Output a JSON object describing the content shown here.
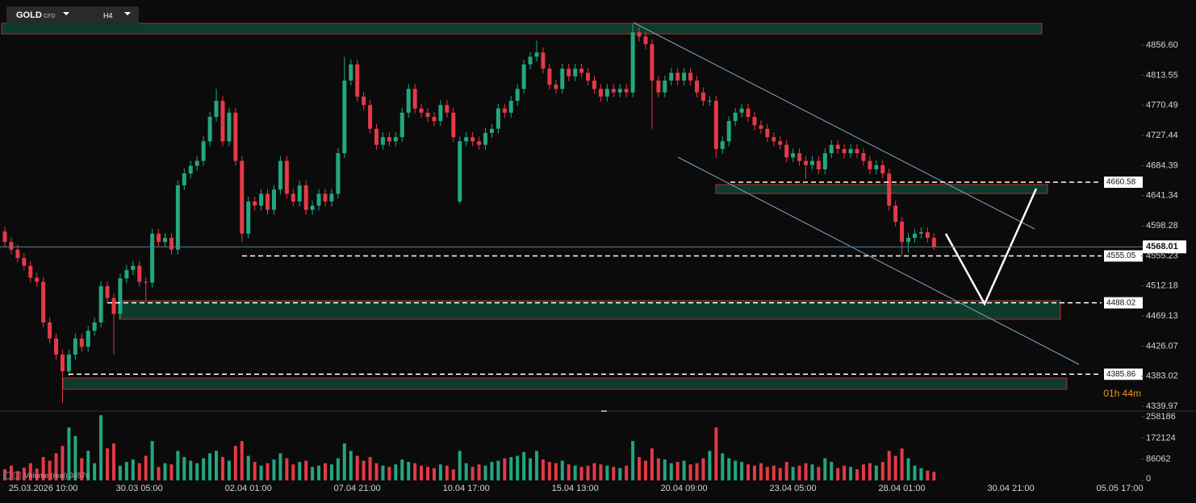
{
  "header": {
    "symbol": "GOLD",
    "badge": "CFD",
    "timeframe": "H4"
  },
  "chart_data": {
    "type": "candlestick",
    "categories": [
      null,
      null,
      null,
      null,
      null,
      null,
      "25.03.2026 10:00",
      null,
      null,
      null,
      null,
      null,
      null,
      null,
      null,
      null,
      null,
      null,
      null,
      null,
      null,
      "30.03 05:00",
      null,
      null,
      null,
      null,
      null,
      null,
      null,
      null,
      null,
      null,
      null,
      null,
      null,
      null,
      null,
      null,
      "02.04 01:00",
      null,
      null,
      null,
      null,
      null,
      null,
      null,
      null,
      null,
      null,
      null,
      null,
      null,
      null,
      null,
      null,
      "07.04 21:00",
      null,
      null,
      null,
      null,
      null,
      null,
      null,
      null,
      null,
      null,
      null,
      null,
      null,
      null,
      null,
      null,
      "10.04 17:00",
      null,
      null,
      null,
      null,
      null,
      null,
      null,
      null,
      null,
      null,
      null,
      null,
      null,
      null,
      null,
      null,
      "15.04 13:00",
      null,
      null,
      null,
      null,
      null,
      null,
      null,
      null,
      null,
      null,
      null,
      null,
      null,
      null,
      null,
      null,
      "20.04 09:00",
      null,
      null,
      null,
      null,
      null,
      null,
      null,
      null,
      null,
      null,
      null,
      null,
      null,
      null,
      null,
      null,
      "23.04 05:00",
      null,
      null,
      null,
      null,
      null,
      null,
      null,
      null,
      null,
      null,
      null,
      null,
      null,
      null,
      null,
      null,
      "28.04 01:00",
      null,
      null,
      null,
      null,
      null,
      null,
      null,
      null,
      null,
      null,
      null,
      null,
      null,
      null,
      null,
      null,
      "30.04 21:00",
      null,
      null,
      null,
      null,
      null,
      null,
      null,
      null,
      null,
      null,
      null,
      null,
      null,
      null,
      null,
      null,
      "05.05 17:00",
      null,
      null
    ],
    "open": [
      4590,
      4575,
      4564,
      4552,
      4541,
      4524,
      4518,
      4460,
      4437,
      4414,
      4390,
      4414,
      4437,
      4425,
      4448,
      4460,
      4512,
      4495,
      4472,
      4523,
      4535,
      4541,
      4518,
      4517,
      4587,
      4575,
      4581,
      4564,
      4656,
      4673,
      4684,
      4691,
      4719,
      4754,
      4777,
      4719,
      4760,
      4691,
      4587,
      4633,
      4627,
      4644,
      4621,
      4650,
      4691,
      4644,
      4633,
      4656,
      4621,
      4627,
      4644,
      4633,
      4644,
      4702,
      4806,
      4829,
      4783,
      4771,
      4737,
      4714,
      4725,
      4719,
      4725,
      4760,
      4794,
      4766,
      4760,
      4754,
      4748,
      4771,
      4760,
      4633,
      4719,
      4725,
      4719,
      4714,
      4731,
      4737,
      4766,
      4760,
      4777,
      4794,
      4829,
      4840,
      4846,
      4823,
      4800,
      4794,
      4823,
      4812,
      4823,
      4817,
      4806,
      4794,
      4783,
      4794,
      4789,
      4794,
      4789,
      4875,
      4869,
      4858,
      4806,
      4789,
      4806,
      4817,
      4806,
      4817,
      4806,
      4789,
      4777,
      4777,
      4708,
      4719,
      4748,
      4760,
      4766,
      4754,
      4742,
      4737,
      4725,
      4719,
      4714,
      4696,
      4702,
      4691,
      4685,
      4691,
      4679,
      4702,
      4714,
      4708,
      4702,
      4708,
      4702,
      4691,
      4679,
      4685,
      4673,
      4627,
      4604,
      4575,
      4581,
      4587,
      4589,
      4581,
      null,
      null,
      null,
      null,
      null,
      null,
      null,
      null,
      null,
      null,
      null,
      null,
      null,
      null,
      null,
      null,
      null,
      null,
      null,
      null,
      null,
      null,
      null,
      null,
      null,
      null,
      null,
      null,
      null,
      null,
      null
    ],
    "high": [
      4597,
      4582,
      4571,
      4559,
      4548,
      4531,
      4525,
      4467,
      4444,
      4421,
      4421,
      4444,
      4444,
      4455,
      4467,
      4519,
      4519,
      4502,
      4530,
      4542,
      4548,
      4548,
      4525,
      4594,
      4594,
      4588,
      4588,
      4663,
      4680,
      4691,
      4698,
      4726,
      4761,
      4794,
      4784,
      4767,
      4767,
      4698,
      4640,
      4640,
      4651,
      4651,
      4657,
      4698,
      4698,
      4651,
      4663,
      4663,
      4634,
      4651,
      4651,
      4651,
      4709,
      4840,
      4836,
      4836,
      4790,
      4778,
      4744,
      4732,
      4732,
      4732,
      4767,
      4801,
      4801,
      4773,
      4767,
      4761,
      4778,
      4778,
      4767,
      4726,
      4732,
      4732,
      4726,
      4738,
      4744,
      4773,
      4773,
      4784,
      4801,
      4836,
      4847,
      4863,
      4853,
      4830,
      4807,
      4830,
      4830,
      4830,
      4830,
      4824,
      4813,
      4801,
      4801,
      4801,
      4801,
      4801,
      4887,
      4882,
      4876,
      4865,
      4813,
      4813,
      4824,
      4824,
      4824,
      4824,
      4813,
      4796,
      4784,
      4784,
      4726,
      4755,
      4767,
      4773,
      4773,
      4761,
      4749,
      4744,
      4732,
      4726,
      4721,
      4709,
      4709,
      4698,
      4698,
      4698,
      4709,
      4721,
      4721,
      4715,
      4715,
      4715,
      4709,
      4698,
      4692,
      4692,
      4680,
      4634,
      4611,
      4588,
      4594,
      4596,
      4596,
      4588,
      null,
      null,
      null,
      null,
      null,
      null,
      null,
      null,
      null,
      null,
      null,
      null,
      null,
      null,
      null,
      null,
      null,
      null,
      null,
      null,
      null,
      null,
      null,
      null,
      null,
      null,
      null,
      null,
      null,
      null,
      null
    ],
    "low": [
      4568,
      4557,
      4545,
      4534,
      4517,
      4511,
      4453,
      4430,
      4407,
      4345,
      4383,
      4407,
      4418,
      4418,
      4441,
      4453,
      4488,
      4414,
      4465,
      4516,
      4528,
      4511,
      4490,
      4510,
      4568,
      4568,
      4557,
      4557,
      4649,
      4666,
      4677,
      4684,
      4712,
      4747,
      4712,
      4712,
      4684,
      4575,
      4580,
      4620,
      4620,
      4614,
      4614,
      4643,
      4637,
      4626,
      4626,
      4614,
      4614,
      4620,
      4626,
      4626,
      4637,
      4695,
      4799,
      4776,
      4764,
      4730,
      4707,
      4707,
      4712,
      4712,
      4718,
      4753,
      4759,
      4753,
      4747,
      4741,
      4741,
      4753,
      4718,
      4630,
      4712,
      4712,
      4707,
      4707,
      4724,
      4730,
      4753,
      4753,
      4770,
      4787,
      4822,
      4833,
      4816,
      4793,
      4787,
      4787,
      4805,
      4805,
      4810,
      4799,
      4787,
      4776,
      4776,
      4782,
      4782,
      4782,
      4782,
      4862,
      4851,
      4737,
      4782,
      4782,
      4799,
      4799,
      4799,
      4799,
      4782,
      4770,
      4770,
      4695,
      4701,
      4712,
      4741,
      4753,
      4747,
      4735,
      4730,
      4718,
      4712,
      4707,
      4689,
      4689,
      4684,
      4665,
      4678,
      4672,
      4672,
      4695,
      4701,
      4695,
      4695,
      4695,
      4684,
      4672,
      4672,
      4666,
      4620,
      4597,
      4555,
      4560,
      4574,
      4580,
      4574,
      4563,
      null,
      null,
      null,
      null,
      null,
      null,
      null,
      null,
      null,
      null,
      null,
      null,
      null,
      null,
      null,
      null,
      null,
      null,
      null,
      null,
      null,
      null,
      null,
      null,
      null,
      null,
      null,
      null,
      null,
      null,
      null
    ],
    "close": [
      4575,
      4564,
      4552,
      4541,
      4524,
      4518,
      4460,
      4437,
      4414,
      4390,
      4414,
      4437,
      4425,
      4448,
      4460,
      4512,
      4495,
      4472,
      4523,
      4535,
      4541,
      4518,
      4517,
      4587,
      4575,
      4581,
      4564,
      4656,
      4673,
      4684,
      4691,
      4719,
      4754,
      4777,
      4719,
      4760,
      4691,
      4587,
      4633,
      4627,
      4644,
      4621,
      4650,
      4691,
      4644,
      4633,
      4656,
      4621,
      4627,
      4644,
      4633,
      4644,
      4702,
      4806,
      4829,
      4783,
      4771,
      4737,
      4714,
      4725,
      4719,
      4725,
      4760,
      4794,
      4766,
      4760,
      4754,
      4748,
      4771,
      4760,
      4725,
      4719,
      4725,
      4719,
      4714,
      4731,
      4737,
      4766,
      4760,
      4777,
      4794,
      4829,
      4840,
      4846,
      4823,
      4800,
      4794,
      4823,
      4812,
      4823,
      4817,
      4806,
      4794,
      4783,
      4794,
      4789,
      4794,
      4789,
      4875,
      4869,
      4858,
      4806,
      4789,
      4806,
      4817,
      4806,
      4817,
      4806,
      4789,
      4777,
      4777,
      4708,
      4719,
      4748,
      4760,
      4766,
      4754,
      4742,
      4737,
      4725,
      4719,
      4714,
      4696,
      4702,
      4691,
      4685,
      4691,
      4679,
      4702,
      4714,
      4708,
      4702,
      4708,
      4702,
      4691,
      4679,
      4685,
      4673,
      4627,
      4604,
      4575,
      4581,
      4587,
      4589,
      4581,
      4568.01,
      null,
      null,
      null,
      null,
      null,
      null,
      null,
      null,
      null,
      null,
      null,
      null,
      null,
      null,
      null,
      null,
      null,
      null,
      null,
      null,
      null,
      null,
      null,
      null,
      null,
      null,
      null,
      null,
      null,
      null,
      null
    ],
    "volume": [
      45000,
      60000,
      38000,
      52000,
      70000,
      48000,
      95000,
      80000,
      110000,
      140000,
      215000,
      180000,
      90000,
      120000,
      70000,
      265000,
      130000,
      150000,
      60000,
      75000,
      85000,
      70000,
      100000,
      160000,
      55000,
      70000,
      65000,
      120000,
      95000,
      80000,
      70000,
      90000,
      110000,
      120000,
      95000,
      80000,
      140000,
      160000,
      100000,
      75000,
      60000,
      70000,
      85000,
      110000,
      90000,
      65000,
      75000,
      80000,
      55000,
      60000,
      70000,
      65000,
      90000,
      150000,
      120000,
      100000,
      80000,
      95000,
      70000,
      60000,
      55000,
      65000,
      85000,
      75000,
      70000,
      60000,
      55000,
      50000,
      65000,
      60000,
      45000,
      120000,
      70000,
      55000,
      65000,
      60000,
      75000,
      80000,
      90000,
      95000,
      100000,
      115000,
      90000,
      120000,
      85000,
      75000,
      70000,
      80000,
      65000,
      60000,
      55000,
      60000,
      70000,
      65000,
      60000,
      55000,
      50000,
      60000,
      160000,
      95000,
      80000,
      130000,
      90000,
      85000,
      70000,
      75000,
      80000,
      65000,
      70000,
      90000,
      120000,
      215000,
      110000,
      90000,
      80000,
      75000,
      65000,
      60000,
      70000,
      55000,
      60000,
      50000,
      75000,
      55000,
      60000,
      70000,
      65000,
      55000,
      90000,
      75000,
      50000,
      60000,
      55000,
      45000,
      65000,
      70000,
      60000,
      75000,
      120000,
      100000,
      130000,
      90000,
      60000,
      50000,
      40000,
      34576,
      null,
      null,
      null,
      null,
      null,
      null,
      null,
      null,
      null,
      null,
      null,
      null,
      null,
      null,
      null,
      null,
      null,
      null,
      null,
      null,
      null,
      null,
      null,
      null,
      null,
      null,
      null,
      null,
      null,
      null,
      null
    ],
    "volume_label": "Volume (real)",
    "up_color": "#22a77e",
    "down_color": "#e53945",
    "ylim": [
      4333.1,
      4921.2
    ],
    "yticks": [
      {
        "value": 4856.6,
        "label": "4856.60"
      },
      4813.55,
      4770.49,
      4727.44,
      4684.39,
      4641.34,
      4598.28,
      4555.23,
      4512.18,
      4469.13,
      4426.07,
      4383.02,
      4339.97
    ],
    "volume_ylim": [
      0,
      275000
    ],
    "volume_yticks": [
      258186,
      172124,
      86062,
      0
    ],
    "current_price": 4568.01,
    "levels": [
      4660.58,
      4555.05,
      4488.02,
      4385.86
    ],
    "countdown": "01h 44m"
  }
}
